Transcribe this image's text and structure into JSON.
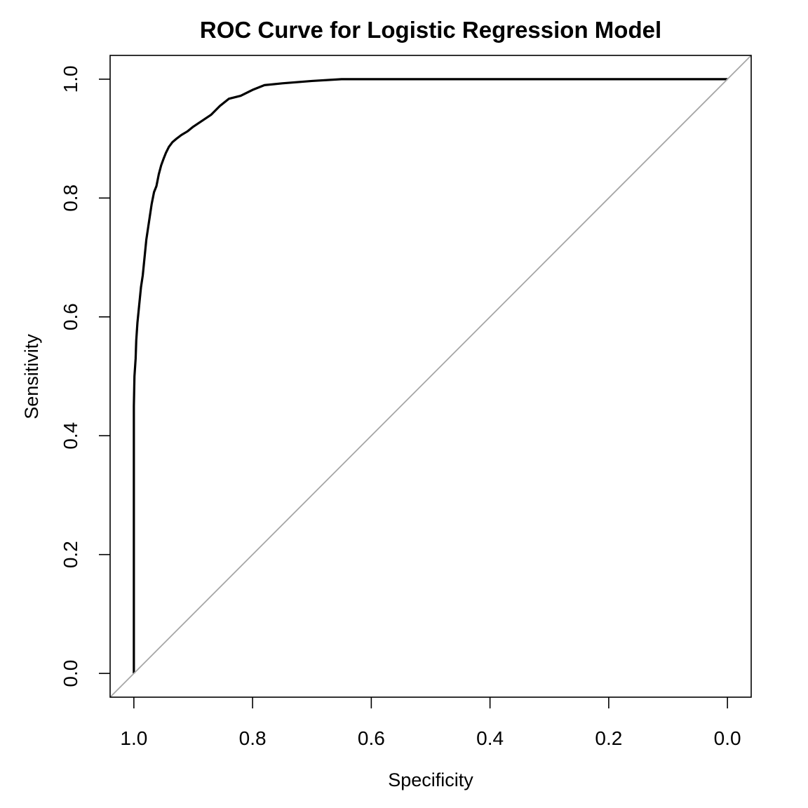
{
  "chart_data": {
    "type": "line",
    "title": "ROC Curve for Logistic Regression Model",
    "xlabel": "Specificity",
    "ylabel": "Sensitivity",
    "x_reversed": true,
    "xlim": [
      1.04,
      -0.04
    ],
    "ylim": [
      -0.04,
      1.04
    ],
    "xticks": [
      1.0,
      0.8,
      0.6,
      0.4,
      0.2,
      0.0
    ],
    "xtick_labels": [
      "1.0",
      "0.8",
      "0.6",
      "0.4",
      "0.2",
      "0.0"
    ],
    "yticks": [
      0.0,
      0.2,
      0.4,
      0.6,
      0.8,
      1.0
    ],
    "ytick_labels": [
      "0.0",
      "0.2",
      "0.4",
      "0.6",
      "0.8",
      "1.0"
    ],
    "grid": false,
    "series": [
      {
        "role": "roc-curve",
        "color": "#000000",
        "specificity": [
          1.0,
          1.0,
          0.999,
          0.997,
          0.996,
          0.994,
          0.992,
          0.99,
          0.988,
          0.985,
          0.982,
          0.979,
          0.976,
          0.973,
          0.97,
          0.966,
          0.962,
          0.958,
          0.954,
          0.95,
          0.946,
          0.941,
          0.935,
          0.928,
          0.92,
          0.91,
          0.9,
          0.885,
          0.87,
          0.855,
          0.84,
          0.82,
          0.8,
          0.78,
          0.75,
          0.7,
          0.65,
          0.5,
          0.3,
          0.0
        ],
        "sensitivity": [
          0.0,
          0.45,
          0.5,
          0.53,
          0.56,
          0.59,
          0.61,
          0.63,
          0.65,
          0.67,
          0.7,
          0.73,
          0.75,
          0.77,
          0.79,
          0.81,
          0.82,
          0.84,
          0.855,
          0.866,
          0.876,
          0.886,
          0.894,
          0.9,
          0.906,
          0.912,
          0.92,
          0.93,
          0.94,
          0.955,
          0.967,
          0.972,
          0.982,
          0.99,
          0.993,
          0.997,
          1.0,
          1.0,
          1.0,
          1.0
        ]
      },
      {
        "role": "reference-diagonal",
        "color": "#a6a6a6",
        "specificity": [
          1.04,
          -0.04
        ],
        "sensitivity": [
          -0.04,
          1.04
        ]
      }
    ]
  }
}
